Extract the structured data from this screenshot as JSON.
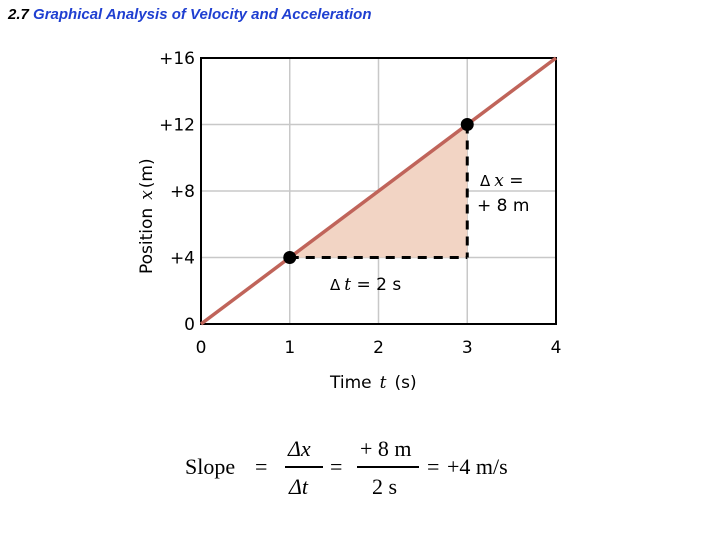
{
  "title": {
    "number": "2.7",
    "text": "Graphical Analysis of Velocity and Acceleration"
  },
  "colors": {
    "title_blue": "#1f3fd1",
    "line": "#c0645a",
    "fill": "#f2d4c4",
    "grid": "#c8c8c8"
  },
  "chart_data": {
    "type": "line",
    "xlabel": "Time  t  (s)",
    "xlabel_parts": {
      "prefix": "Time",
      "var": "t",
      "unit": "(s)"
    },
    "ylabel_parts": {
      "prefix": "Position",
      "var": "x",
      "unit": "(m)"
    },
    "xlim": [
      0,
      4
    ],
    "ylim": [
      0,
      16
    ],
    "x_ticks": [
      "0",
      "1",
      "2",
      "3",
      "4"
    ],
    "y_ticks": [
      "0",
      "+4",
      "+8",
      "+12",
      "+16"
    ],
    "grid": true,
    "series": [
      {
        "x": [
          0,
          4
        ],
        "y": [
          0,
          16
        ]
      }
    ],
    "points": [
      {
        "x": 1,
        "y": 4
      },
      {
        "x": 3,
        "y": 12
      }
    ],
    "annotations": {
      "delta_t": {
        "delta": "Δ",
        "var": "t",
        "rest": " = 2 s"
      },
      "delta_x": {
        "delta": "Δ",
        "var": "x",
        "rest": " =",
        "value": "+ 8 m"
      }
    }
  },
  "formula": {
    "lhs": "Slope",
    "eq": "=",
    "num1": "Δx",
    "den1": "Δt",
    "num2": "+ 8 m",
    "den2": "2 s",
    "result": "+4 m/s"
  }
}
